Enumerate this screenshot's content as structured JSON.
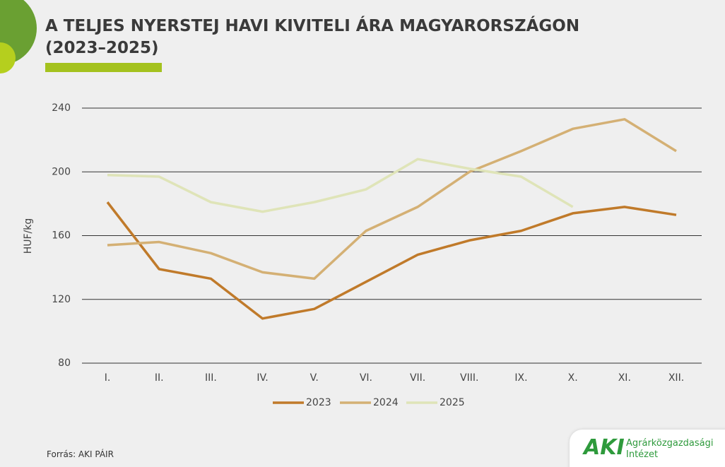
{
  "chart_data": {
    "type": "line",
    "title": "A TELJES NYERSTEJ HAVI KIVITELI ÁRA MAGYARORSZÁGON (2023–2025)",
    "y_label": "HUF/kg",
    "categories": [
      "I.",
      "II.",
      "III.",
      "IV.",
      "V.",
      "VI.",
      "VII.",
      "VIII.",
      "IX.",
      "X.",
      "XI.",
      "XII."
    ],
    "series": [
      {
        "name": "2023",
        "color": "#c07a2a",
        "values": [
          181,
          139,
          133,
          108,
          114,
          131,
          148,
          157,
          163,
          174,
          178,
          173
        ]
      },
      {
        "name": "2024",
        "color": "#d4b074",
        "values": [
          154,
          156,
          149,
          137,
          133,
          163,
          178,
          200,
          213,
          227,
          233,
          213
        ]
      },
      {
        "name": "2025",
        "color": "#dfe4b8",
        "values": [
          198,
          197,
          181,
          175,
          181,
          189,
          208,
          202,
          197,
          178,
          null,
          null
        ]
      }
    ],
    "ylim": [
      80,
      240
    ],
    "yticks": [
      80,
      120,
      160,
      200,
      240
    ],
    "grid": true,
    "legend": "bottom"
  },
  "footer": {
    "source": "Forrás: AKI PÁIR",
    "logo_abbr": "AKI",
    "logo_line1": "Agrárközgazdasági",
    "logo_line2": "Intézet"
  }
}
